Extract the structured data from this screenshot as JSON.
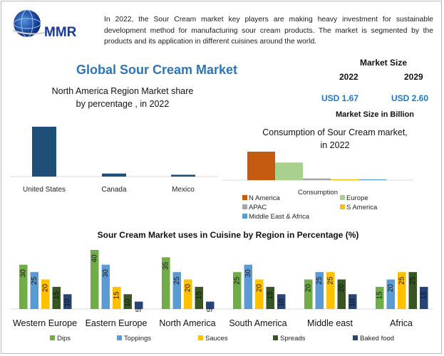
{
  "logo": {
    "text": "MMR"
  },
  "intro": "In 2022, the Sour Cream market key players are making heavy investment for sustainable development method for manufacturing sour cream products. The market is segmented by the products and its application in different cuisines around the world.",
  "title": "Global Sour Cream Market",
  "market_size": {
    "title": "Market Size",
    "years": [
      "2022",
      "2029"
    ],
    "values": [
      "USD 1.67",
      "USD 2.60"
    ],
    "unit": "Market Size in Billion"
  },
  "colors": {
    "dark_blue": "#1f4e79",
    "orange": "#c55a11",
    "light_green": "#a9d18e",
    "gray": "#a5a5a5",
    "yellow": "#ffc000",
    "blue": "#5b9bd5",
    "green": "#70ad47",
    "dark_green": "#375623",
    "navy": "#264478"
  },
  "chart_data": [
    {
      "type": "bar",
      "title": "North America Region Market share by percentage , in 2022",
      "categories": [
        "United States",
        "Canada",
        "Mexico"
      ],
      "values": [
        82,
        5,
        3
      ],
      "ylim": [
        0,
        90
      ],
      "color": "#1f4e79",
      "grid": false
    },
    {
      "type": "bar",
      "title": "Consumption of Sour Cream market, in 2022",
      "xlabel": "Consumption",
      "series": [
        {
          "name": "N America",
          "values": [
            34
          ],
          "color": "#c55a11"
        },
        {
          "name": "Europe",
          "values": [
            21
          ],
          "color": "#a9d18e"
        },
        {
          "name": "APAC",
          "values": [
            2
          ],
          "color": "#a5a5a5"
        },
        {
          "name": "S America",
          "values": [
            1
          ],
          "color": "#ffc000"
        },
        {
          "name": "Middle East & Africa",
          "values": [
            1
          ],
          "color": "#5b9bd5"
        }
      ],
      "ylim": [
        0,
        40
      ],
      "legend": "bottom",
      "grid": false
    },
    {
      "type": "bar",
      "title": "Sour Cream Market uses in Cuisine by Region in Percentage (%)",
      "categories": [
        "Western Europe",
        "Eastern Europe",
        "North America",
        "South America",
        "Middle east",
        "Africa"
      ],
      "series": [
        {
          "name": "Dips",
          "values": [
            30,
            40,
            35,
            25,
            20,
            15
          ],
          "color": "#70ad47"
        },
        {
          "name": "Toppings",
          "values": [
            25,
            30,
            25,
            30,
            25,
            20
          ],
          "color": "#5b9bd5"
        },
        {
          "name": "Sauces",
          "values": [
            20,
            15,
            20,
            20,
            25,
            25
          ],
          "color": "#ffc000"
        },
        {
          "name": "Spreads",
          "values": [
            15,
            10,
            15,
            15,
            20,
            25
          ],
          "color": "#375623"
        },
        {
          "name": "Baked food",
          "values": [
            10,
            5,
            5,
            10,
            10,
            15
          ],
          "color": "#264478"
        }
      ],
      "ylim": [
        0,
        40
      ],
      "legend": "bottom",
      "data_labels": true,
      "grid": false
    }
  ]
}
